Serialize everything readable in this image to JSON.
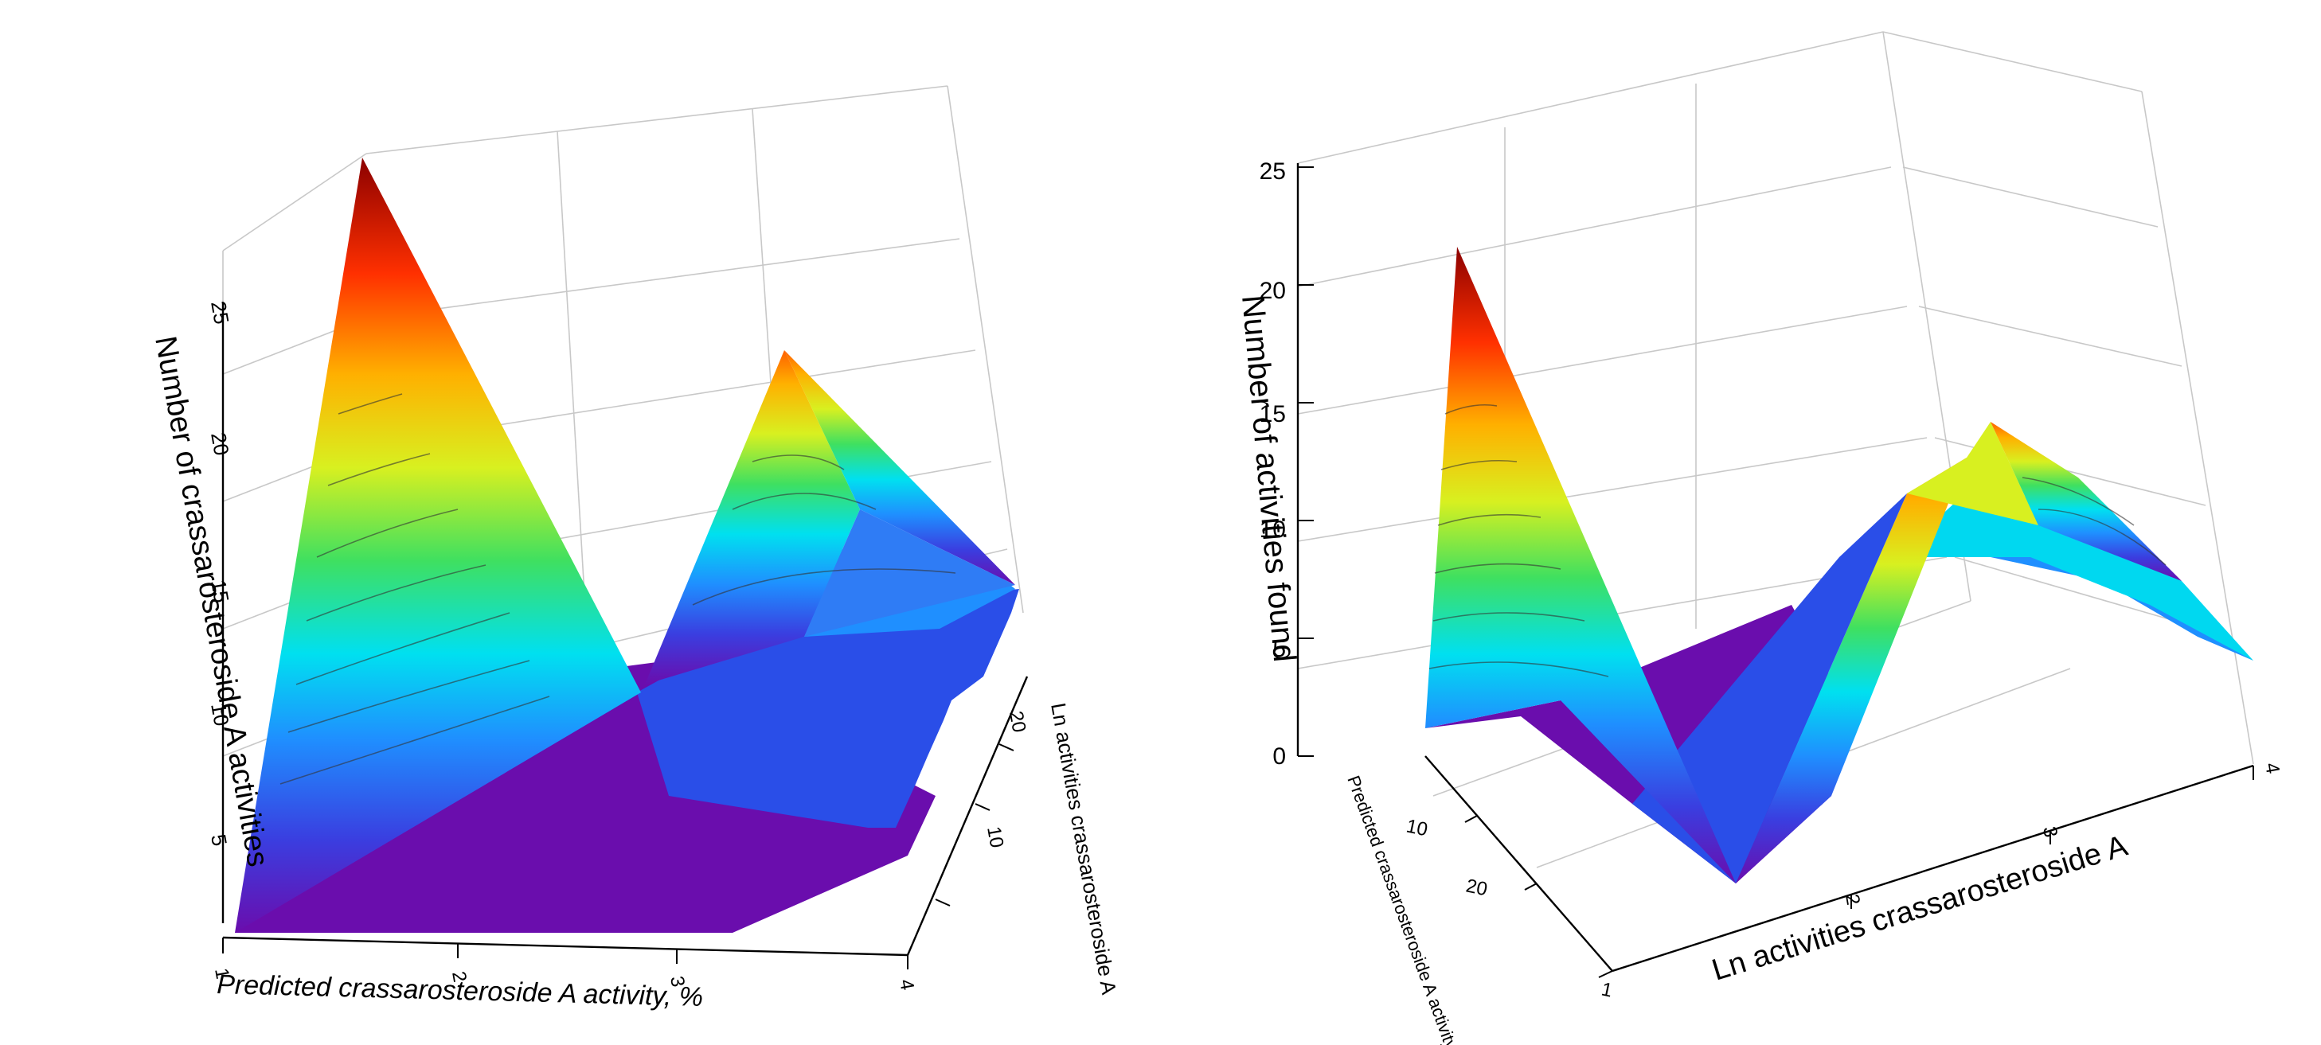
{
  "chart_data": [
    {
      "type": "surface",
      "title": "",
      "xlabel": "Predicted crassarosteroside A activity, %",
      "ylabel": "Ln activities crassarosteroside A",
      "zlabel": "Number of crassarosteroside A activities",
      "x_ticks": [
        "1",
        "2",
        "3",
        "4"
      ],
      "y_ticks": [
        "10",
        "20"
      ],
      "z_ticks": [
        "5",
        "10",
        "15",
        "20",
        "25"
      ],
      "zlim": [
        0,
        25
      ],
      "peaks": [
        {
          "location": "x=1, far y edge",
          "z": 25
        },
        {
          "location": "x=4, near y edge",
          "z": 18
        }
      ],
      "colormap": [
        "#6a0dad",
        "#3a3ee0",
        "#1f8fff",
        "#00e0f0",
        "#3fe060",
        "#d8f020",
        "#ffb000",
        "#ff3000",
        "#8b0000"
      ]
    },
    {
      "type": "surface",
      "title": "",
      "xlabel": "Ln activities crassarosteroside A",
      "ylabel": "Predicted crassarosteroside A activity, %",
      "zlabel": "Number of activities found",
      "x_ticks": [
        "2",
        "3",
        "4"
      ],
      "y_ticks": [
        "1",
        "10",
        "20"
      ],
      "z_ticks": [
        "0",
        "5",
        "10",
        "15",
        "20",
        "25"
      ],
      "zlim": [
        0,
        25
      ],
      "peaks": [
        {
          "location": "front-left corner",
          "z": 21
        },
        {
          "location": "middle ridge",
          "z": 12
        }
      ],
      "colormap": [
        "#6a0dad",
        "#3a3ee0",
        "#1f8fff",
        "#00e0f0",
        "#3fe060",
        "#d8f020",
        "#ffb000",
        "#ff3000",
        "#8b0000"
      ]
    }
  ]
}
